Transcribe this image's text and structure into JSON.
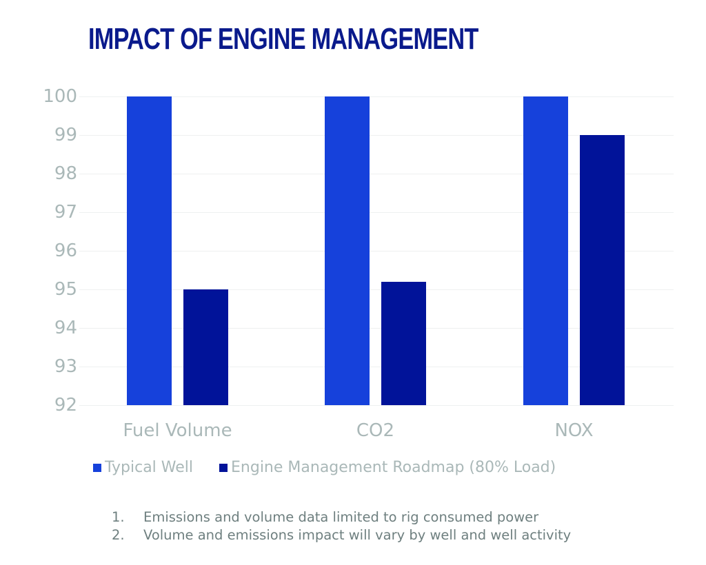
{
  "chart_data": {
    "type": "bar",
    "title": "IMPACT OF ENGINE MANAGEMENT",
    "categories": [
      "Fuel Volume",
      "CO2",
      "NOX"
    ],
    "series": [
      {
        "name": "Typical Well",
        "color": "#1641db",
        "values": [
          100,
          100,
          100
        ]
      },
      {
        "name": "Engine Management Roadmap (80% Load)",
        "color": "#011399",
        "values": [
          95.0,
          95.2,
          99.0
        ]
      }
    ],
    "xlabel": "",
    "ylabel": "",
    "ylim": [
      92,
      100
    ],
    "yticks": [
      "100",
      "99",
      "98",
      "97",
      "96",
      "95",
      "94",
      "93",
      "92"
    ],
    "grid": true,
    "legend_position": "bottom"
  },
  "notes": [
    {
      "num": "1.",
      "text": "Emissions and volume data limited to rig consumed power"
    },
    {
      "num": "2.",
      "text": "Volume and emissions impact will vary by well and well activity"
    }
  ]
}
